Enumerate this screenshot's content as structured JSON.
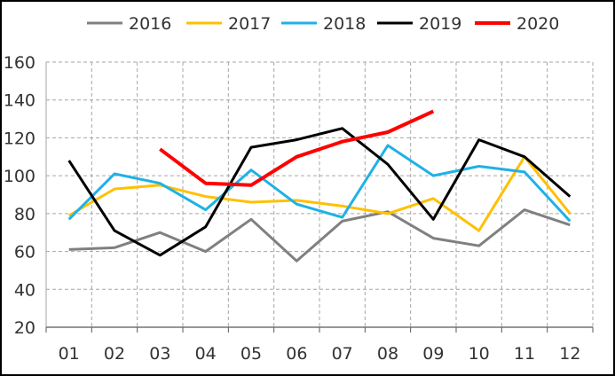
{
  "chart_data": {
    "type": "line",
    "title": "",
    "xlabel": "",
    "ylabel": "",
    "categories": [
      "01",
      "02",
      "03",
      "04",
      "05",
      "06",
      "07",
      "08",
      "09",
      "10",
      "11",
      "12"
    ],
    "ylim": [
      20,
      160
    ],
    "yticks": [
      20,
      40,
      60,
      80,
      100,
      120,
      140,
      160
    ],
    "grid": true,
    "legend": "top",
    "series": [
      {
        "name": "2016",
        "color": "#808080",
        "values": [
          61,
          62,
          70,
          60,
          77,
          55,
          76,
          81,
          67,
          63,
          82,
          74
        ]
      },
      {
        "name": "2017",
        "color": "#FFC000",
        "values": [
          79,
          93,
          95,
          89,
          86,
          87,
          84,
          80,
          88,
          71,
          110,
          80
        ]
      },
      {
        "name": "2018",
        "color": "#1FB1E6",
        "values": [
          77,
          101,
          96,
          82,
          103,
          85,
          78,
          116,
          100,
          105,
          102,
          76
        ]
      },
      {
        "name": "2019",
        "color": "#000000",
        "values": [
          108,
          71,
          58,
          73,
          115,
          119,
          125,
          106,
          77,
          119,
          110,
          89
        ]
      },
      {
        "name": "2020",
        "color": "#FF0000",
        "values": [
          null,
          null,
          114,
          96,
          95,
          110,
          118,
          123,
          134,
          null,
          null,
          null
        ]
      }
    ]
  }
}
